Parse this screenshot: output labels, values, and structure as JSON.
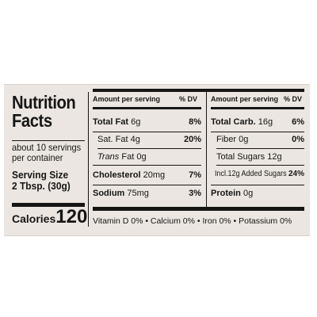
{
  "label": {
    "title_line1": "Nutrition",
    "title_line2": "Facts",
    "servings_line1": "about 10 servings",
    "servings_line2": "per container",
    "serving_size_line1": "Serving Size",
    "serving_size_line2": "2 Tbsp. (30g)",
    "calories_label": "Calories",
    "calories_value": "120"
  },
  "columns": {
    "left_header": "Amount per serving",
    "left_dv": "% DV",
    "right_header": "Amount per serving",
    "right_dv": "% DV"
  },
  "left_rows": [
    {
      "name": "Total Fat",
      "amount": "6g",
      "dv": "8%"
    },
    {
      "name": "Sat. Fat",
      "amount": "4g",
      "dv": "20%"
    },
    {
      "name": "Trans",
      "name_suffix": "Fat 0g",
      "amount": "",
      "dv": ""
    },
    {
      "name": "Cholesterol",
      "amount": "20mg",
      "dv": "7%"
    },
    {
      "name": "Sodium",
      "amount": "75mg",
      "dv": "3%"
    }
  ],
  "right_rows": [
    {
      "name": "Total Carb.",
      "amount": "16g",
      "dv": "6%"
    },
    {
      "name": "Fiber",
      "amount": "0g",
      "dv": "0%"
    },
    {
      "name": "Total Sugars",
      "amount": "12g",
      "dv": ""
    },
    {
      "name": "Incl.12g Added Sugars",
      "amount": "",
      "dv": "24%"
    },
    {
      "name": "Protein",
      "amount": "0g",
      "dv": ""
    }
  ],
  "footer": {
    "vitamins": "Vitamin D 0% • Calcium 0% • Iron 0% • Potassium 0%"
  }
}
